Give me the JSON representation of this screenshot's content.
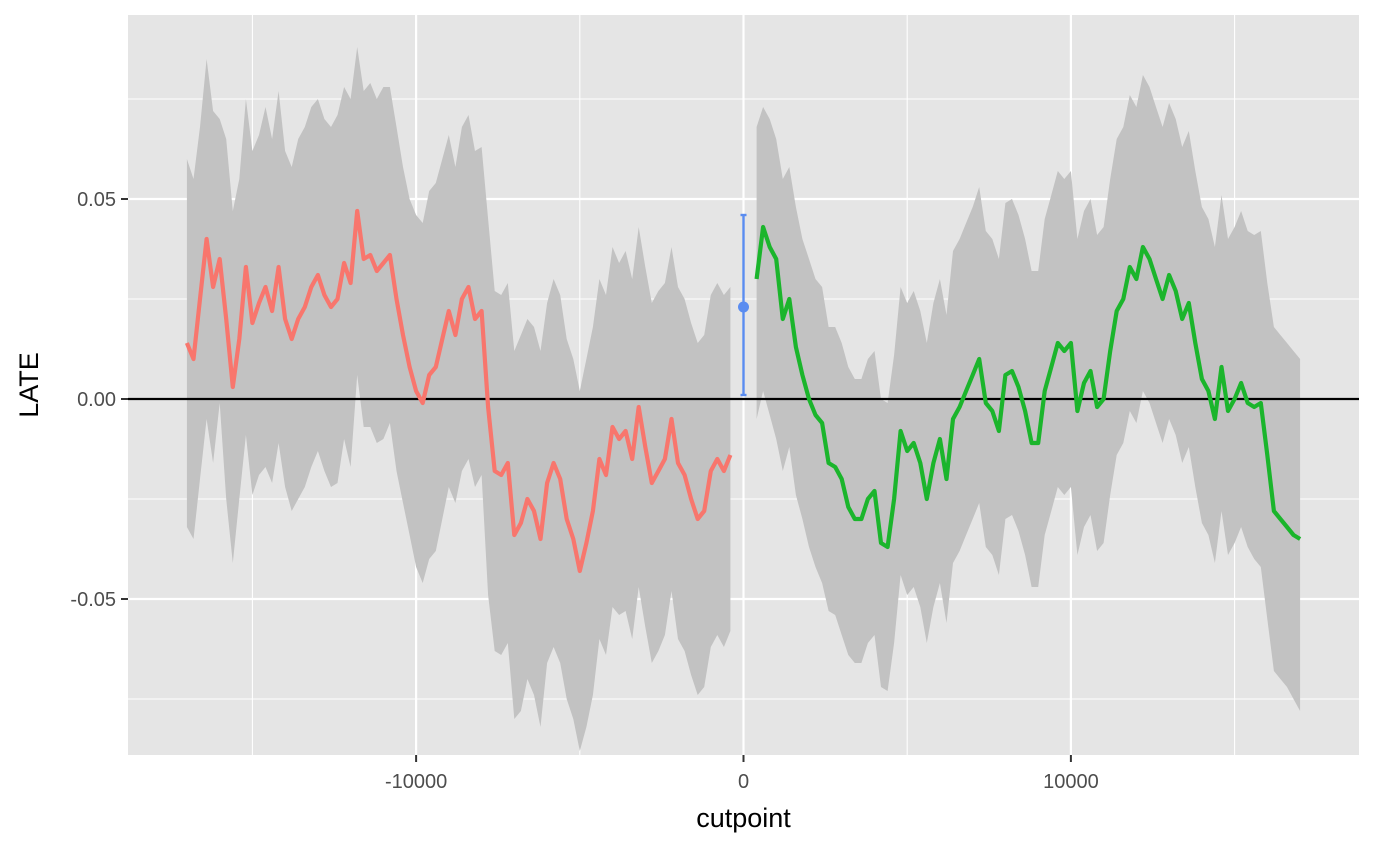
{
  "chart_data": {
    "type": "line",
    "xlabel": "cutpoint",
    "ylabel": "LATE",
    "xlim": [
      -18800,
      18800
    ],
    "ylim": [
      -0.089,
      0.096
    ],
    "x_ticks": [
      -10000,
      0,
      10000
    ],
    "x_tick_labels": [
      "-10000",
      "0",
      "10000"
    ],
    "y_ticks": [
      -0.05,
      0.0,
      0.05
    ],
    "y_tick_labels": [
      "-0.05",
      "0.00",
      "0.05"
    ],
    "grid": true,
    "reference_line_y": 0,
    "colors": {
      "panel": "#e5e5e5",
      "grid": "#ffffff",
      "ribbon": "#c2c2c2",
      "left_series": "#f8766d",
      "right_series": "#1bb52c",
      "point_estimate": "#5a8cf0",
      "reference": "#000000"
    },
    "series": [
      {
        "x": [
          -17000,
          -16800,
          -16600,
          -16400,
          -16200,
          -16000,
          -15800,
          -15600,
          -15400,
          -15200,
          -15000,
          -14800,
          -14600,
          -14400,
          -14200,
          -14000,
          -13800,
          -13600,
          -13400,
          -13200,
          -13000,
          -12800,
          -12600,
          -12400,
          -12200,
          -12000,
          -11800,
          -11600,
          -11400,
          -11200,
          -11000,
          -10800,
          -10600,
          -10400,
          -10200,
          -10000,
          -9800,
          -9600,
          -9400,
          -9200,
          -9000,
          -8800,
          -8600,
          -8400,
          -8200,
          -8000,
          -7800,
          -7600,
          -7400,
          -7200,
          -7000,
          -6800,
          -6600,
          -6400,
          -6200,
          -6000,
          -5800,
          -5600,
          -5400,
          -5200,
          -5000,
          -4800,
          -4600,
          -4400,
          -4200,
          -4000,
          -3800,
          -3600,
          -3400,
          -3200,
          -3000,
          -2800,
          -2600,
          -2400,
          -2200,
          -2000,
          -1800,
          -1600,
          -1400,
          -1200,
          -1000,
          -800,
          -600,
          -400
        ],
        "values": [
          0.014,
          0.01,
          0.025,
          0.04,
          0.028,
          0.035,
          0.02,
          0.003,
          0.015,
          0.033,
          0.019,
          0.024,
          0.028,
          0.022,
          0.033,
          0.02,
          0.015,
          0.02,
          0.023,
          0.028,
          0.031,
          0.026,
          0.023,
          0.025,
          0.034,
          0.029,
          0.047,
          0.035,
          0.036,
          0.032,
          0.034,
          0.036,
          0.025,
          0.016,
          0.008,
          0.002,
          -0.001,
          0.006,
          0.008,
          0.015,
          0.022,
          0.016,
          0.025,
          0.028,
          0.02,
          0.022,
          -0.002,
          -0.018,
          -0.019,
          -0.016,
          -0.034,
          -0.031,
          -0.025,
          -0.028,
          -0.035,
          -0.021,
          -0.016,
          -0.02,
          -0.03,
          -0.035,
          -0.043,
          -0.036,
          -0.028,
          -0.015,
          -0.019,
          -0.007,
          -0.01,
          -0.008,
          -0.015,
          -0.002,
          -0.012,
          -0.021,
          -0.018,
          -0.015,
          -0.005,
          -0.016,
          -0.019,
          -0.025,
          -0.03,
          -0.028,
          -0.018,
          -0.015,
          -0.018,
          -0.014
        ],
        "upper": [
          0.06,
          0.055,
          0.068,
          0.085,
          0.072,
          0.07,
          0.065,
          0.047,
          0.055,
          0.075,
          0.062,
          0.066,
          0.073,
          0.065,
          0.077,
          0.062,
          0.058,
          0.065,
          0.068,
          0.073,
          0.075,
          0.07,
          0.068,
          0.071,
          0.078,
          0.075,
          0.088,
          0.077,
          0.079,
          0.075,
          0.078,
          0.078,
          0.068,
          0.058,
          0.05,
          0.046,
          0.044,
          0.052,
          0.054,
          0.06,
          0.066,
          0.058,
          0.068,
          0.071,
          0.062,
          0.063,
          0.045,
          0.027,
          0.026,
          0.029,
          0.012,
          0.016,
          0.02,
          0.018,
          0.012,
          0.024,
          0.03,
          0.026,
          0.015,
          0.01,
          0.002,
          0.01,
          0.018,
          0.03,
          0.026,
          0.038,
          0.034,
          0.037,
          0.03,
          0.043,
          0.033,
          0.024,
          0.027,
          0.029,
          0.038,
          0.028,
          0.025,
          0.019,
          0.014,
          0.016,
          0.026,
          0.029,
          0.026,
          0.028
        ],
        "lower": [
          -0.032,
          -0.035,
          -0.02,
          -0.005,
          -0.016,
          -0.001,
          -0.025,
          -0.041,
          -0.025,
          -0.009,
          -0.024,
          -0.019,
          -0.017,
          -0.021,
          -0.011,
          -0.022,
          -0.028,
          -0.025,
          -0.022,
          -0.017,
          -0.013,
          -0.018,
          -0.022,
          -0.021,
          -0.01,
          -0.017,
          0.006,
          -0.007,
          -0.007,
          -0.011,
          -0.01,
          -0.006,
          -0.018,
          -0.026,
          -0.034,
          -0.042,
          -0.046,
          -0.04,
          -0.038,
          -0.03,
          -0.022,
          -0.026,
          -0.018,
          -0.015,
          -0.022,
          -0.019,
          -0.049,
          -0.063,
          -0.064,
          -0.061,
          -0.08,
          -0.078,
          -0.07,
          -0.074,
          -0.082,
          -0.066,
          -0.062,
          -0.066,
          -0.075,
          -0.08,
          -0.088,
          -0.082,
          -0.074,
          -0.06,
          -0.064,
          -0.052,
          -0.054,
          -0.053,
          -0.06,
          -0.047,
          -0.057,
          -0.066,
          -0.063,
          -0.059,
          -0.048,
          -0.06,
          -0.063,
          -0.069,
          -0.074,
          -0.072,
          -0.062,
          -0.059,
          -0.062,
          -0.058
        ]
      },
      {
        "x": [
          400,
          600,
          800,
          1000,
          1200,
          1400,
          1600,
          1800,
          2000,
          2200,
          2400,
          2600,
          2800,
          3000,
          3200,
          3400,
          3600,
          3800,
          4000,
          4200,
          4400,
          4600,
          4800,
          5000,
          5200,
          5400,
          5600,
          5800,
          6000,
          6200,
          6400,
          6600,
          6800,
          7000,
          7200,
          7400,
          7600,
          7800,
          8000,
          8200,
          8400,
          8600,
          8800,
          9000,
          9200,
          9400,
          9600,
          9800,
          10000,
          10200,
          10400,
          10600,
          10800,
          11000,
          11200,
          11400,
          11600,
          11800,
          12000,
          12200,
          12400,
          12600,
          12800,
          13000,
          13200,
          13400,
          13600,
          13800,
          14000,
          14200,
          14400,
          14600,
          14800,
          15000,
          15200,
          15400,
          15600,
          15800,
          16000,
          16200,
          16400,
          16600,
          16800,
          17000
        ],
        "values": [
          0.03,
          0.043,
          0.038,
          0.035,
          0.02,
          0.025,
          0.013,
          0.006,
          0.0,
          -0.004,
          -0.006,
          -0.016,
          -0.017,
          -0.02,
          -0.027,
          -0.03,
          -0.03,
          -0.025,
          -0.023,
          -0.036,
          -0.037,
          -0.025,
          -0.008,
          -0.013,
          -0.011,
          -0.016,
          -0.025,
          -0.016,
          -0.01,
          -0.02,
          -0.005,
          -0.002,
          0.002,
          0.006,
          0.01,
          -0.001,
          -0.003,
          -0.008,
          0.006,
          0.007,
          0.003,
          -0.003,
          -0.011,
          -0.011,
          0.002,
          0.008,
          0.014,
          0.012,
          0.014,
          -0.003,
          0.004,
          0.007,
          -0.002,
          0.0,
          0.012,
          0.022,
          0.025,
          0.033,
          0.03,
          0.038,
          0.035,
          0.03,
          0.025,
          0.031,
          0.027,
          0.02,
          0.024,
          0.014,
          0.005,
          0.002,
          -0.005,
          0.008,
          -0.003,
          0.0,
          0.004,
          -0.001,
          -0.002,
          -0.001,
          -0.014,
          -0.028,
          -0.03,
          -0.032,
          -0.034,
          -0.035
        ],
        "upper": [
          0.068,
          0.073,
          0.07,
          0.065,
          0.055,
          0.058,
          0.048,
          0.04,
          0.035,
          0.03,
          0.028,
          0.018,
          0.018,
          0.014,
          0.008,
          0.005,
          0.005,
          0.01,
          0.012,
          0.0,
          -0.001,
          0.011,
          0.028,
          0.024,
          0.027,
          0.022,
          0.014,
          0.024,
          0.03,
          0.021,
          0.037,
          0.04,
          0.044,
          0.048,
          0.053,
          0.042,
          0.04,
          0.035,
          0.049,
          0.05,
          0.046,
          0.04,
          0.032,
          0.032,
          0.045,
          0.051,
          0.057,
          0.055,
          0.057,
          0.04,
          0.047,
          0.05,
          0.041,
          0.043,
          0.055,
          0.065,
          0.068,
          0.076,
          0.073,
          0.081,
          0.078,
          0.073,
          0.068,
          0.074,
          0.07,
          0.063,
          0.067,
          0.057,
          0.048,
          0.045,
          0.038,
          0.051,
          0.04,
          0.043,
          0.047,
          0.042,
          0.041,
          0.042,
          0.029,
          0.018,
          0.016,
          0.014,
          0.012,
          0.01
        ],
        "lower": [
          -0.005,
          0.002,
          -0.004,
          -0.01,
          -0.018,
          -0.012,
          -0.024,
          -0.03,
          -0.037,
          -0.042,
          -0.046,
          -0.053,
          -0.054,
          -0.059,
          -0.064,
          -0.066,
          -0.066,
          -0.061,
          -0.059,
          -0.072,
          -0.073,
          -0.061,
          -0.044,
          -0.049,
          -0.047,
          -0.052,
          -0.061,
          -0.052,
          -0.046,
          -0.056,
          -0.041,
          -0.038,
          -0.034,
          -0.03,
          -0.026,
          -0.037,
          -0.039,
          -0.044,
          -0.03,
          -0.029,
          -0.033,
          -0.039,
          -0.047,
          -0.047,
          -0.034,
          -0.028,
          -0.022,
          -0.024,
          -0.022,
          -0.039,
          -0.032,
          -0.029,
          -0.038,
          -0.036,
          -0.024,
          -0.014,
          -0.011,
          -0.003,
          -0.006,
          0.002,
          -0.001,
          -0.006,
          -0.011,
          -0.005,
          -0.009,
          -0.016,
          -0.012,
          -0.022,
          -0.031,
          -0.034,
          -0.041,
          -0.028,
          -0.039,
          -0.036,
          -0.032,
          -0.037,
          -0.04,
          -0.042,
          -0.055,
          -0.068,
          -0.07,
          -0.072,
          -0.075,
          -0.078
        ]
      }
    ],
    "point_estimate": {
      "x": 0,
      "y": 0.023,
      "lower": 0.001,
      "upper": 0.046
    }
  }
}
